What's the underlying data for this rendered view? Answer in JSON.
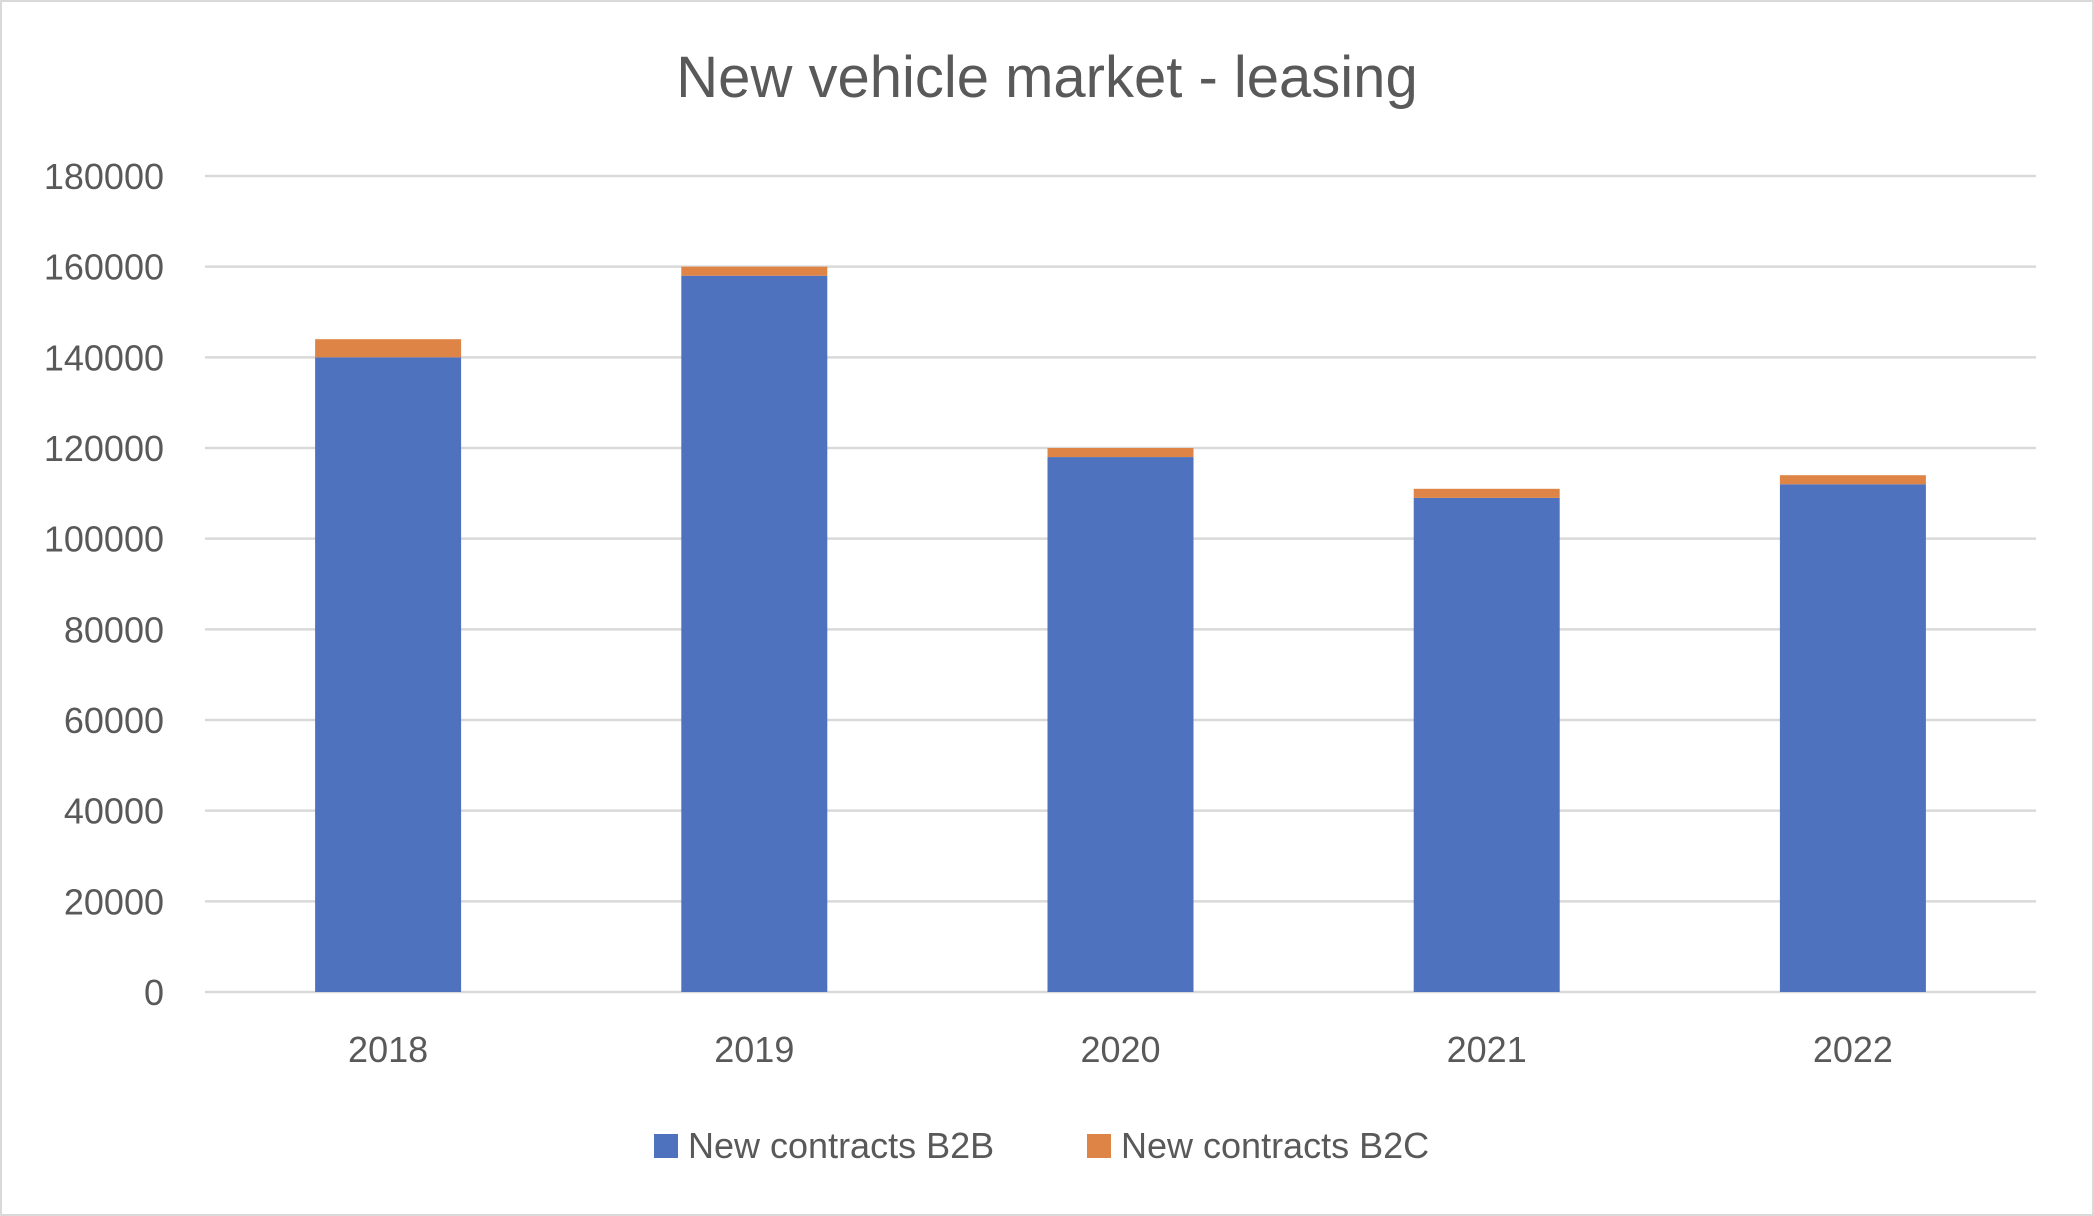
{
  "chart_data": {
    "type": "bar",
    "stacked": true,
    "title": "New vehicle market - leasing",
    "xlabel": "",
    "ylabel": "",
    "categories": [
      "2018",
      "2019",
      "2020",
      "2021",
      "2022"
    ],
    "series": [
      {
        "name": "New contracts B2B",
        "color": "#4F72BE",
        "values": [
          140000,
          158000,
          118000,
          109000,
          112000
        ]
      },
      {
        "name": "New contracts B2C",
        "color": "#DD8446",
        "values": [
          4000,
          2000,
          2000,
          2000,
          2000
        ]
      }
    ],
    "ylim": [
      0,
      180000
    ],
    "yticks": [
      "0",
      "20000",
      "40000",
      "60000",
      "80000",
      "100000",
      "120000",
      "140000",
      "160000",
      "180000"
    ],
    "grid": true,
    "legend_position": "bottom"
  }
}
